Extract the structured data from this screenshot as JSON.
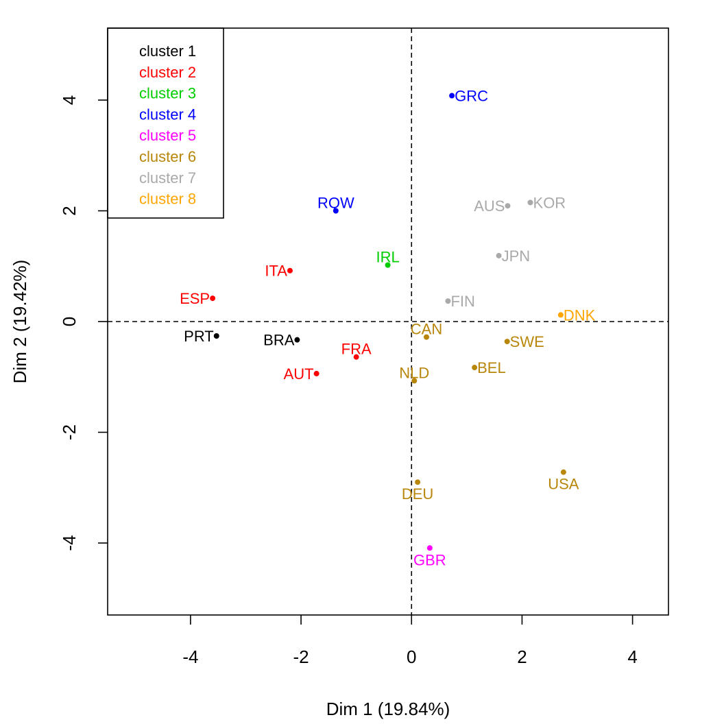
{
  "chart_data": {
    "type": "scatter",
    "xlabel": "Dim 1 (19.84%)",
    "ylabel": "Dim 2 (19.42%)",
    "xlim": [
      -5.5,
      4.65
    ],
    "ylim": [
      -5.3,
      5.3
    ],
    "xticks": [
      -4,
      -2,
      0,
      2,
      4
    ],
    "yticks": [
      -4,
      -2,
      0,
      2,
      4
    ],
    "reference_lines": {
      "x": 0,
      "y": 0,
      "style": "dashed"
    },
    "grid": false,
    "legend": {
      "placement": "top-left",
      "entries": [
        {
          "label": "cluster 1",
          "color": "#000000"
        },
        {
          "label": "cluster 2",
          "color": "#FF0000"
        },
        {
          "label": "cluster 3",
          "color": "#00CD00"
        },
        {
          "label": "cluster 4",
          "color": "#0000FF"
        },
        {
          "label": "cluster 5",
          "color": "#FF00FF"
        },
        {
          "label": "cluster 6",
          "color": "#B8860B"
        },
        {
          "label": "cluster 7",
          "color": "#A9A9A9"
        },
        {
          "label": "cluster 8",
          "color": "#FFA500"
        }
      ]
    },
    "points": [
      {
        "label": "GRC",
        "x": 0.73,
        "y": 4.08,
        "cluster": 4,
        "label_pos": "right"
      },
      {
        "label": "RQW",
        "x": -1.37,
        "y": 2.0,
        "cluster": 4,
        "label_pos": "top"
      },
      {
        "label": "IRL",
        "x": -0.43,
        "y": 1.02,
        "cluster": 3,
        "label_pos": "top"
      },
      {
        "label": "ITA",
        "x": -2.2,
        "y": 0.92,
        "cluster": 2,
        "label_pos": "left"
      },
      {
        "label": "ESP",
        "x": -3.6,
        "y": 0.42,
        "cluster": 2,
        "label_pos": "left"
      },
      {
        "label": "FRA",
        "x": -1.0,
        "y": -0.64,
        "cluster": 2,
        "label_pos": "top"
      },
      {
        "label": "AUT",
        "x": -1.72,
        "y": -0.94,
        "cluster": 2,
        "label_pos": "left"
      },
      {
        "label": "PRT",
        "x": -3.53,
        "y": -0.26,
        "cluster": 1,
        "label_pos": "left"
      },
      {
        "label": "BRA",
        "x": -2.07,
        "y": -0.33,
        "cluster": 1,
        "label_pos": "left"
      },
      {
        "label": "GBR",
        "x": 0.33,
        "y": -4.09,
        "cluster": 5,
        "label_pos": "bottom"
      },
      {
        "label": "CAN",
        "x": 0.27,
        "y": -0.28,
        "cluster": 6,
        "label_pos": "top"
      },
      {
        "label": "NLD",
        "x": 0.05,
        "y": -1.07,
        "cluster": 6,
        "label_pos": "top"
      },
      {
        "label": "SWE",
        "x": 1.73,
        "y": -0.36,
        "cluster": 6,
        "label_pos": "right"
      },
      {
        "label": "BEL",
        "x": 1.14,
        "y": -0.83,
        "cluster": 6,
        "label_pos": "right"
      },
      {
        "label": "DEU",
        "x": 0.11,
        "y": -2.9,
        "cluster": 6,
        "label_pos": "bottom"
      },
      {
        "label": "USA",
        "x": 2.75,
        "y": -2.72,
        "cluster": 6,
        "label_pos": "bottom"
      },
      {
        "label": "AUS",
        "x": 1.74,
        "y": 2.09,
        "cluster": 7,
        "label_pos": "left"
      },
      {
        "label": "KOR",
        "x": 2.15,
        "y": 2.15,
        "cluster": 7,
        "label_pos": "right"
      },
      {
        "label": "JPN",
        "x": 1.58,
        "y": 1.19,
        "cluster": 7,
        "label_pos": "right"
      },
      {
        "label": "FIN",
        "x": 0.66,
        "y": 0.37,
        "cluster": 7,
        "label_pos": "right"
      },
      {
        "label": "DNK",
        "x": 2.7,
        "y": 0.12,
        "cluster": 8,
        "label_pos": "right"
      }
    ]
  }
}
